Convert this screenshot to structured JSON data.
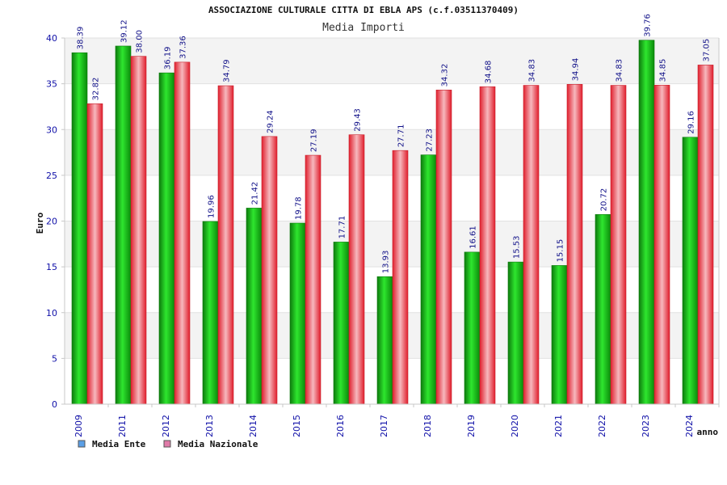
{
  "header": {
    "title": "ASSOCIAZIONE CULTURALE CITTA DI EBLA APS (c.f.03511370409)",
    "subtitle": "Media Importi"
  },
  "colors": {
    "ente": "#19b319",
    "nazionale": "#e8303c",
    "legend_ente": "#5b9fe6",
    "legend_nazionale": "#e07aa8",
    "band": "#f3f3f3",
    "axis": "#c8c8c8"
  },
  "chart_data": {
    "type": "bar",
    "title": "Media Importi",
    "xlabel": "anno",
    "ylabel": "Euro",
    "ylim": [
      0,
      40
    ],
    "yticks": [
      0,
      5,
      10,
      15,
      20,
      25,
      30,
      35,
      40
    ],
    "grid": "horizontal bands",
    "legend_position": "bottom-left",
    "categories": [
      "2009",
      "2011",
      "2012",
      "2013",
      "2014",
      "2015",
      "2016",
      "2017",
      "2018",
      "2019",
      "2020",
      "2021",
      "2022",
      "2023",
      "2024"
    ],
    "series": [
      {
        "name": "Media Ente",
        "values": [
          38.39,
          39.12,
          36.19,
          19.96,
          21.42,
          19.78,
          17.71,
          13.93,
          27.23,
          16.61,
          15.53,
          15.15,
          20.72,
          39.76,
          29.16
        ],
        "labels": [
          "38.39",
          "39.12",
          "36.19",
          "19.96",
          "21.42",
          "19.78",
          "17.71",
          "13.93",
          "27.23",
          "16.61",
          "15.53",
          "15.15",
          "20.72",
          "39.76",
          "29.16"
        ]
      },
      {
        "name": "Media Nazionale",
        "values": [
          32.82,
          38.0,
          37.36,
          34.79,
          29.24,
          27.19,
          29.43,
          27.71,
          34.32,
          34.68,
          34.83,
          34.94,
          34.83,
          34.85,
          37.05
        ],
        "labels": [
          "32.82",
          "38.00",
          "37.36",
          "34.79",
          "29.24",
          "27.19",
          "29.43",
          "27.71",
          "34.32",
          "34.68",
          "34.83",
          "34.94",
          "34.83",
          "34.85",
          "37.05"
        ]
      }
    ]
  }
}
